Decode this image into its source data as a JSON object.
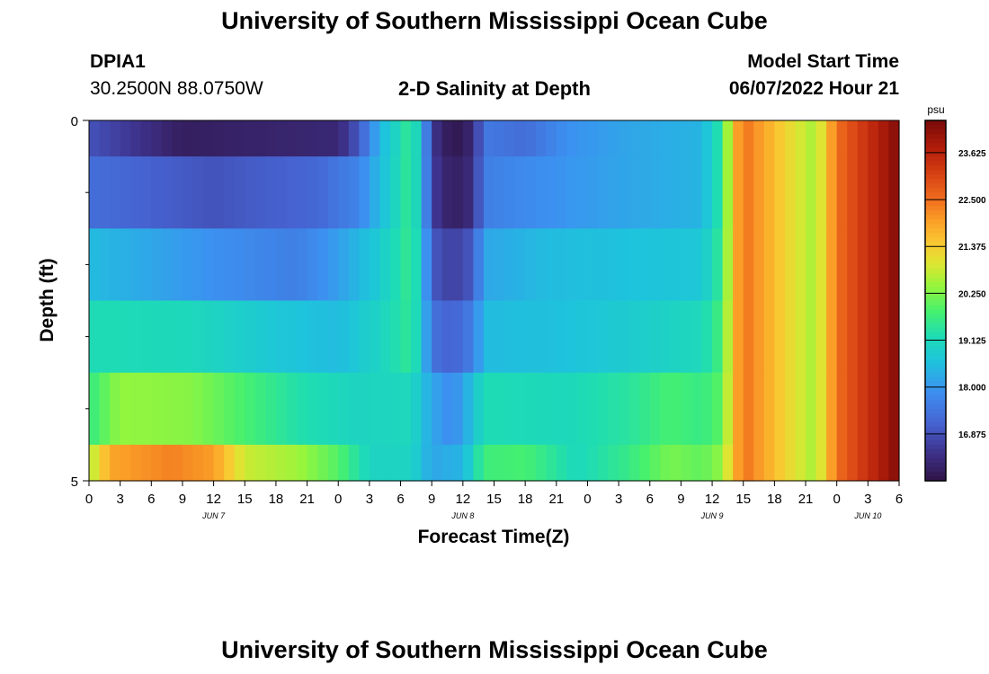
{
  "page": {
    "title": "University of Southern Mississippi Ocean Cube",
    "footer_title": "University of Southern Mississippi Ocean Cube"
  },
  "station": {
    "id": "DPIA1",
    "coords": "30.2500N  88.0750W"
  },
  "model": {
    "label": "Model Start Time",
    "start": "06/07/2022 Hour 21"
  },
  "chart_data": {
    "type": "heatmap",
    "title": "2-D Salinity at Depth",
    "xlabel": "Forecast Time(Z)",
    "ylabel": "Depth (ft)",
    "x_hours": [
      0,
      78
    ],
    "ylim": [
      0,
      5
    ],
    "y_ticks": [
      "0",
      "5"
    ],
    "y_minor_ticks": [
      1,
      2,
      3,
      4
    ],
    "x_tick_labels": [
      "0",
      "3",
      "6",
      "9",
      "12",
      "15",
      "18",
      "21",
      "0",
      "3",
      "6",
      "9",
      "12",
      "15",
      "18",
      "21",
      "0",
      "3",
      "6",
      "9",
      "12",
      "15",
      "18",
      "21",
      "0",
      "3",
      "6"
    ],
    "day_labels": [
      {
        "label": "JUN 7",
        "hour": 12
      },
      {
        "label": "JUN 8",
        "hour": 36
      },
      {
        "label": "JUN 9",
        "hour": 60
      },
      {
        "label": "JUN 10",
        "hour": 75
      }
    ],
    "colorbar": {
      "unit": "psu",
      "min": 15.75,
      "max": 24.4,
      "ticks": [
        "23.625",
        "22.500",
        "21.375",
        "20.250",
        "19.125",
        "18.000",
        "16.875"
      ]
    },
    "layers": [
      {
        "depth_from": 0,
        "depth_to": 0.5,
        "keyframes": [
          [
            0,
            16.9
          ],
          [
            9,
            16.0
          ],
          [
            16,
            16.1
          ],
          [
            24,
            16.2
          ],
          [
            26,
            17.0
          ],
          [
            28,
            18.4
          ],
          [
            31,
            19.6
          ],
          [
            32,
            18.6
          ],
          [
            33,
            16.5
          ],
          [
            35,
            15.8
          ],
          [
            37,
            16.2
          ],
          [
            38,
            17.5
          ],
          [
            42,
            17.3
          ],
          [
            46,
            17.9
          ],
          [
            52,
            18.2
          ],
          [
            59,
            18.4
          ],
          [
            61,
            19.5
          ],
          [
            62,
            21.5
          ],
          [
            63,
            22.5
          ],
          [
            68,
            21.0
          ],
          [
            70,
            20.5
          ],
          [
            72,
            22.5
          ],
          [
            78,
            24.3
          ]
        ]
      },
      {
        "depth_from": 0.5,
        "depth_to": 1.5,
        "keyframes": [
          [
            0,
            17.3
          ],
          [
            12,
            16.9
          ],
          [
            22,
            17.2
          ],
          [
            26,
            17.7
          ],
          [
            28,
            18.5
          ],
          [
            31,
            19.6
          ],
          [
            32,
            18.6
          ],
          [
            33,
            16.6
          ],
          [
            35,
            16.0
          ],
          [
            37,
            16.3
          ],
          [
            38,
            17.6
          ],
          [
            44,
            17.9
          ],
          [
            52,
            18.2
          ],
          [
            59,
            18.4
          ],
          [
            61,
            19.5
          ],
          [
            62,
            21.5
          ],
          [
            63,
            22.5
          ],
          [
            68,
            21.0
          ],
          [
            70,
            20.5
          ],
          [
            72,
            22.5
          ],
          [
            78,
            24.3
          ]
        ]
      },
      {
        "depth_from": 1.5,
        "depth_to": 2.5,
        "keyframes": [
          [
            0,
            18.5
          ],
          [
            12,
            17.9
          ],
          [
            20,
            17.6
          ],
          [
            24,
            18.1
          ],
          [
            28,
            18.8
          ],
          [
            31,
            19.6
          ],
          [
            32,
            18.8
          ],
          [
            33,
            17.0
          ],
          [
            35,
            16.6
          ],
          [
            37,
            17.0
          ],
          [
            38,
            18.2
          ],
          [
            44,
            18.5
          ],
          [
            52,
            18.6
          ],
          [
            59,
            18.7
          ],
          [
            61,
            19.6
          ],
          [
            62,
            21.5
          ],
          [
            63,
            22.5
          ],
          [
            68,
            21.0
          ],
          [
            70,
            20.5
          ],
          [
            72,
            22.5
          ],
          [
            78,
            24.3
          ]
        ]
      },
      {
        "depth_from": 2.5,
        "depth_to": 3.5,
        "keyframes": [
          [
            0,
            19.2
          ],
          [
            10,
            19.1
          ],
          [
            18,
            18.7
          ],
          [
            24,
            18.5
          ],
          [
            28,
            19.0
          ],
          [
            31,
            19.5
          ],
          [
            32,
            18.8
          ],
          [
            33,
            17.4
          ],
          [
            35,
            17.1
          ],
          [
            37,
            17.6
          ],
          [
            38,
            18.5
          ],
          [
            46,
            18.6
          ],
          [
            52,
            18.8
          ],
          [
            59,
            19.1
          ],
          [
            61,
            19.8
          ],
          [
            62,
            21.5
          ],
          [
            63,
            22.5
          ],
          [
            68,
            21.0
          ],
          [
            70,
            20.5
          ],
          [
            72,
            22.5
          ],
          [
            78,
            24.3
          ]
        ]
      },
      {
        "depth_from": 3.5,
        "depth_to": 4.5,
        "keyframes": [
          [
            0,
            19.6
          ],
          [
            3,
            20.4
          ],
          [
            10,
            20.3
          ],
          [
            14,
            19.9
          ],
          [
            20,
            19.3
          ],
          [
            26,
            19.0
          ],
          [
            31,
            19.1
          ],
          [
            33,
            18.2
          ],
          [
            35,
            17.8
          ],
          [
            37,
            18.6
          ],
          [
            38,
            19.2
          ],
          [
            46,
            19.1
          ],
          [
            52,
            19.4
          ],
          [
            56,
            19.8
          ],
          [
            59,
            19.6
          ],
          [
            61,
            20.0
          ],
          [
            62,
            21.5
          ],
          [
            63,
            22.5
          ],
          [
            68,
            21.0
          ],
          [
            70,
            20.5
          ],
          [
            72,
            22.5
          ],
          [
            78,
            24.3
          ]
        ]
      },
      {
        "depth_from": 4.5,
        "depth_to": 5,
        "keyframes": [
          [
            0,
            20.5
          ],
          [
            2,
            21.9
          ],
          [
            8,
            22.3
          ],
          [
            12,
            22.0
          ],
          [
            15,
            20.8
          ],
          [
            20,
            20.5
          ],
          [
            24,
            19.9
          ],
          [
            27,
            19.0
          ],
          [
            31,
            19.0
          ],
          [
            33,
            18.2
          ],
          [
            36,
            18.4
          ],
          [
            38,
            19.7
          ],
          [
            42,
            19.8
          ],
          [
            47,
            19.1
          ],
          [
            52,
            19.6
          ],
          [
            56,
            20.2
          ],
          [
            59,
            20.0
          ],
          [
            61,
            20.4
          ],
          [
            62,
            21.5
          ],
          [
            63,
            22.5
          ],
          [
            68,
            21.0
          ],
          [
            70,
            20.5
          ],
          [
            72,
            22.5
          ],
          [
            78,
            24.3
          ]
        ]
      }
    ]
  }
}
